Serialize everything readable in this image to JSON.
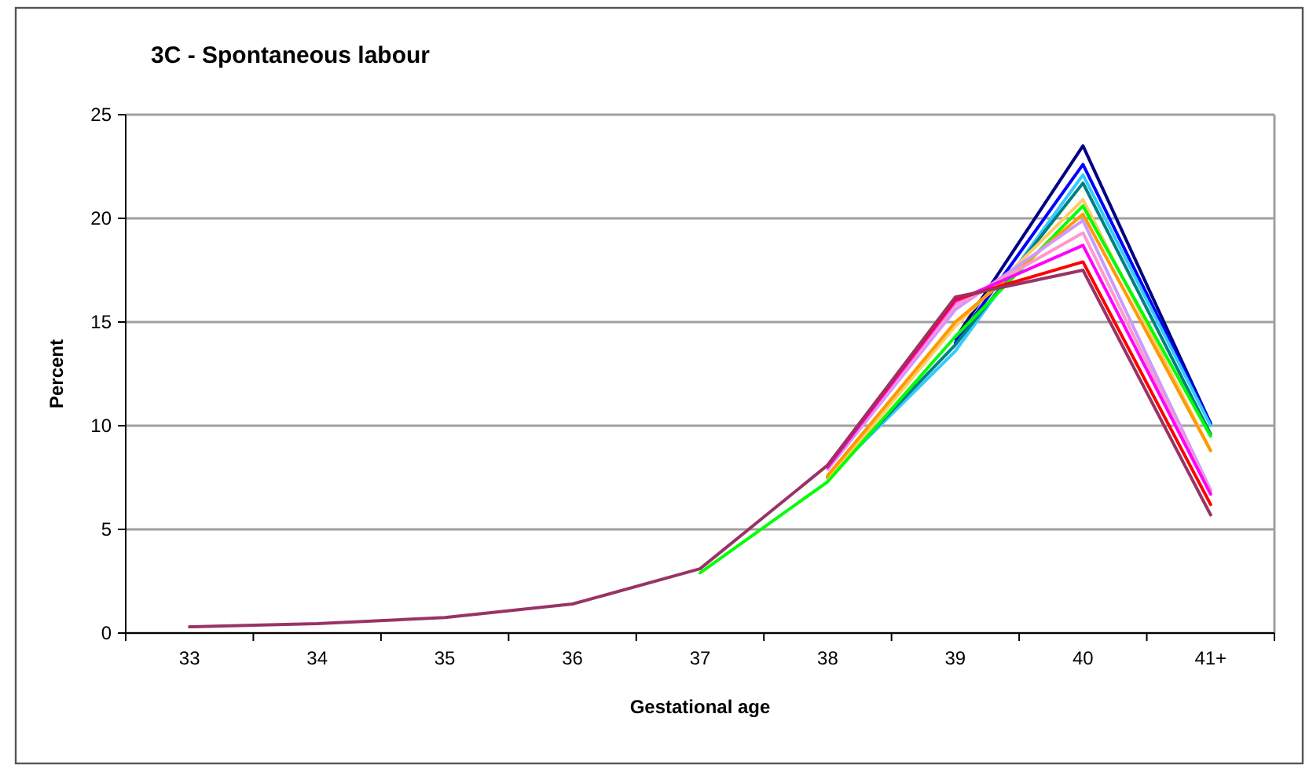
{
  "chart_data": {
    "type": "line",
    "title": "3C  - Spontaneous labour",
    "xlabel": "Gestational age",
    "ylabel": "Percent",
    "categories": [
      "33",
      "34",
      "35",
      "36",
      "37",
      "38",
      "39",
      "40",
      "41+"
    ],
    "ylim": [
      0,
      25
    ],
    "yticks": [
      0,
      5,
      10,
      15,
      20,
      25
    ],
    "grid": "y",
    "marker": "none",
    "line_style": "solid",
    "series": [
      {
        "color": "#000080",
        "values": [
          null,
          null,
          null,
          null,
          null,
          null,
          14.2,
          23.5,
          10.1
        ]
      },
      {
        "color": "#0000ff",
        "values": [
          null,
          null,
          null,
          null,
          null,
          null,
          14.0,
          22.6,
          10.1
        ]
      },
      {
        "color": "#33ccff",
        "values": [
          null,
          null,
          null,
          null,
          null,
          7.5,
          13.6,
          22.1,
          10.0
        ]
      },
      {
        "color": "#008080",
        "values": [
          null,
          null,
          null,
          null,
          null,
          7.5,
          13.9,
          21.7,
          9.6
        ]
      },
      {
        "color": "#ffcc66",
        "values": [
          null,
          null,
          null,
          null,
          null,
          7.4,
          14.8,
          20.9,
          8.8
        ]
      },
      {
        "color": "#00ff00",
        "values": [
          null,
          null,
          null,
          null,
          2.9,
          7.3,
          14.3,
          20.6,
          9.5
        ]
      },
      {
        "color": "#ff9900",
        "values": [
          null,
          null,
          null,
          null,
          null,
          7.6,
          15.0,
          20.2,
          8.8
        ]
      },
      {
        "color": "#cc99ff",
        "values": [
          null,
          null,
          null,
          null,
          null,
          7.9,
          15.6,
          19.9,
          6.9
        ]
      },
      {
        "color": "#ff99cc",
        "values": [
          null,
          null,
          null,
          null,
          null,
          8.0,
          15.8,
          19.3,
          6.8
        ]
      },
      {
        "color": "#ff00ff",
        "values": [
          null,
          null,
          null,
          null,
          null,
          8.0,
          16.0,
          18.7,
          6.7
        ]
      },
      {
        "color": "#ff0000",
        "values": [
          null,
          null,
          null,
          null,
          null,
          8.1,
          16.1,
          17.9,
          6.2
        ]
      },
      {
        "color": "#993366",
        "values": [
          0.3,
          0.45,
          0.75,
          1.4,
          3.1,
          8.1,
          16.2,
          17.5,
          5.7
        ]
      }
    ]
  }
}
